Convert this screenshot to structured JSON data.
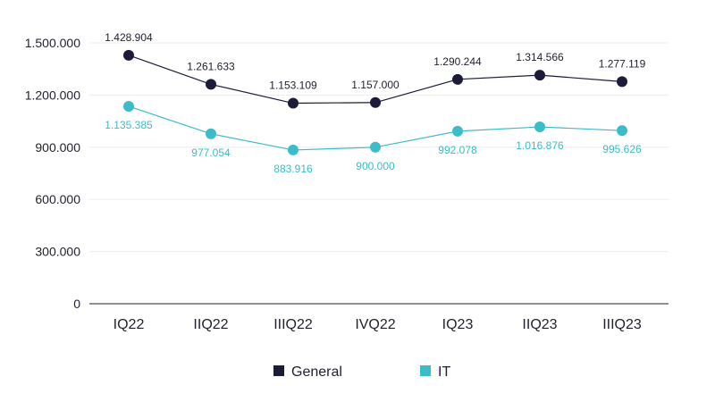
{
  "chart_data": {
    "type": "line",
    "title": "",
    "xlabel": "",
    "ylabel": "",
    "categories": [
      "IQ22",
      "IIQ22",
      "IIIQ22",
      "IVQ22",
      "IQ23",
      "IIQ23",
      "IIIQ23"
    ],
    "ylim": [
      0,
      1500000
    ],
    "yticks": [
      0,
      300000,
      600000,
      900000,
      1200000,
      1500000
    ],
    "ytick_labels": [
      "0",
      "300.000",
      "600.000",
      "900.000",
      "1.200.000",
      "1.500.000"
    ],
    "grid": true,
    "legend_position": "bottom",
    "series": [
      {
        "name": "General",
        "color": "#1c1c3a",
        "values": [
          1428904,
          1261633,
          1153109,
          1157000,
          1290244,
          1314566,
          1277119
        ],
        "labels": [
          "1.428.904",
          "1.261.633",
          "1.153.109",
          "1.157.000",
          "1.290.244",
          "1.314.566",
          "1.277.119"
        ]
      },
      {
        "name": "IT",
        "color": "#3bbcc8",
        "values": [
          1135385,
          977054,
          883916,
          900000,
          992078,
          1016876,
          995626
        ],
        "labels": [
          "1.135.385",
          "977.054",
          "883.916",
          "900.000",
          "992.078",
          "1.016.876",
          "995.626"
        ]
      }
    ]
  }
}
